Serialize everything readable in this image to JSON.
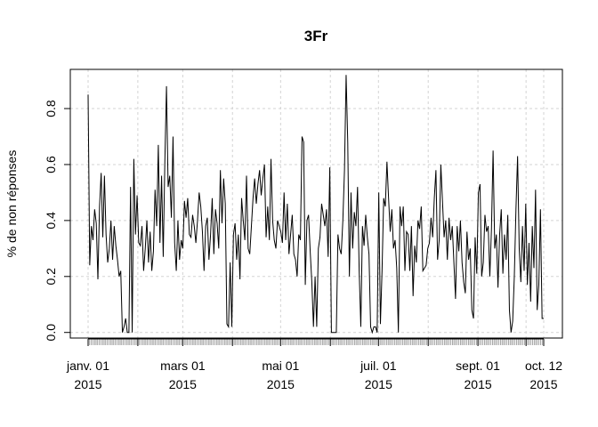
{
  "chart_data": {
    "type": "line",
    "title": "3Fr",
    "xlabel": "",
    "ylabel": "% de non réponses",
    "x_start": "2015-01-01",
    "x_end": "2015-10-12",
    "ylim": [
      -0.02,
      0.94
    ],
    "y_ticks": [
      "0.0",
      "0.2",
      "0.4",
      "0.6",
      "0.8"
    ],
    "x_ticks": [
      {
        "date": "2015-01-01",
        "line1": "janv. 01",
        "line2": "2015"
      },
      {
        "date": "2015-03-01",
        "line1": "mars 01",
        "line2": "2015"
      },
      {
        "date": "2015-05-01",
        "line1": "mai 01",
        "line2": "2015"
      },
      {
        "date": "2015-07-01",
        "line1": "juil. 01",
        "line2": "2015"
      },
      {
        "date": "2015-09-01",
        "line1": "sept. 01",
        "line2": "2015"
      },
      {
        "date": "2015-10-12",
        "line1": "oct. 12",
        "line2": "2015"
      }
    ],
    "grid": true,
    "grid_style": "dashed",
    "line_color": "#000000",
    "series": [
      {
        "values": [
          0.85,
          0.24,
          0.38,
          0.33,
          0.44,
          0.39,
          0.19,
          0.45,
          0.57,
          0.34,
          0.56,
          0.35,
          0.25,
          0.3,
          0.4,
          0.26,
          0.38,
          0.31,
          0.26,
          0.2,
          0.22,
          0.0,
          0.02,
          0.05,
          0.0,
          0.0,
          0.52,
          0.0,
          0.62,
          0.35,
          0.49,
          0.32,
          0.31,
          0.38,
          0.22,
          0.3,
          0.4,
          0.25,
          0.36,
          0.22,
          0.29,
          0.51,
          0.38,
          0.67,
          0.32,
          0.56,
          0.27,
          0.61,
          0.88,
          0.52,
          0.56,
          0.41,
          0.7,
          0.32,
          0.22,
          0.4,
          0.26,
          0.33,
          0.3,
          0.47,
          0.41,
          0.48,
          0.35,
          0.34,
          0.42,
          0.38,
          0.32,
          0.4,
          0.5,
          0.45,
          0.36,
          0.22,
          0.38,
          0.41,
          0.26,
          0.35,
          0.48,
          0.28,
          0.44,
          0.39,
          0.3,
          0.58,
          0.39,
          0.55,
          0.46,
          0.03,
          0.02,
          0.25,
          0.02,
          0.35,
          0.39,
          0.26,
          0.35,
          0.19,
          0.48,
          0.4,
          0.33,
          0.56,
          0.3,
          0.28,
          0.38,
          0.48,
          0.55,
          0.46,
          0.53,
          0.58,
          0.49,
          0.55,
          0.6,
          0.34,
          0.45,
          0.33,
          0.62,
          0.4,
          0.33,
          0.3,
          0.4,
          0.38,
          0.36,
          0.32,
          0.5,
          0.33,
          0.46,
          0.28,
          0.35,
          0.42,
          0.28,
          0.26,
          0.2,
          0.35,
          0.33,
          0.7,
          0.68,
          0.17,
          0.4,
          0.42,
          0.29,
          0.18,
          0.02,
          0.2,
          0.02,
          0.3,
          0.34,
          0.46,
          0.42,
          0.38,
          0.44,
          0.27,
          0.59,
          0.0,
          0.0,
          0.0,
          0.0,
          0.35,
          0.3,
          0.28,
          0.4,
          0.58,
          0.92,
          0.68,
          0.2,
          0.5,
          0.3,
          0.43,
          0.38,
          0.52,
          0.22,
          0.02,
          0.38,
          0.31,
          0.42,
          0.34,
          0.28,
          0.02,
          0.0,
          0.02,
          0.02,
          0.0,
          0.5,
          0.03,
          0.22,
          0.48,
          0.45,
          0.61,
          0.48,
          0.36,
          0.44,
          0.3,
          0.33,
          0.23,
          0.0,
          0.45,
          0.38,
          0.45,
          0.22,
          0.36,
          0.35,
          0.22,
          0.38,
          0.13,
          0.31,
          0.25,
          0.4,
          0.37,
          0.45,
          0.22,
          0.23,
          0.24,
          0.3,
          0.32,
          0.41,
          0.34,
          0.48,
          0.58,
          0.26,
          0.33,
          0.6,
          0.47,
          0.34,
          0.4,
          0.26,
          0.41,
          0.33,
          0.38,
          0.25,
          0.12,
          0.38,
          0.29,
          0.4,
          0.25,
          0.18,
          0.14,
          0.36,
          0.26,
          0.3,
          0.08,
          0.05,
          0.34,
          0.21,
          0.5,
          0.53,
          0.2,
          0.25,
          0.42,
          0.36,
          0.38,
          0.2,
          0.37,
          0.65,
          0.3,
          0.35,
          0.16,
          0.35,
          0.44,
          0.21,
          0.35,
          0.26,
          0.42,
          0.08,
          0.0,
          0.04,
          0.2,
          0.44,
          0.63,
          0.3,
          0.18,
          0.38,
          0.22,
          0.46,
          0.17,
          0.32,
          0.11,
          0.38,
          0.23,
          0.51,
          0.08,
          0.17,
          0.44,
          0.05,
          0.05
        ]
      }
    ]
  }
}
